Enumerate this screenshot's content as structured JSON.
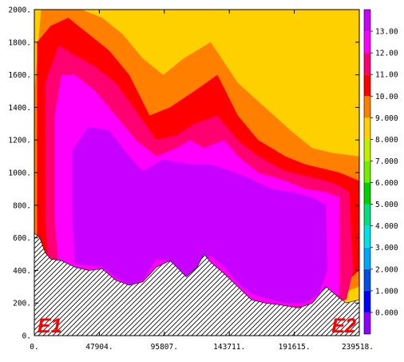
{
  "chart_data": {
    "type": "heatmap",
    "title": "",
    "xlabel": "",
    "ylabel": "",
    "x_ticks": [
      "0.",
      "47904.",
      "95807.",
      "143711.",
      "191615.",
      "239518."
    ],
    "x_tick_values": [
      0,
      47904,
      95807,
      143711,
      191615,
      239518
    ],
    "y_ticks": [
      "0.",
      "200.",
      "400.",
      "600.",
      "800.",
      "1000.",
      "1200.",
      "1400.",
      "1600.",
      "1800.",
      "2000."
    ],
    "y_tick_values": [
      0,
      200,
      400,
      600,
      800,
      1000,
      1200,
      1400,
      1600,
      1800,
      2000
    ],
    "xlim": [
      0,
      239518
    ],
    "ylim": [
      0,
      2000
    ],
    "colorbar": {
      "labels": [
        "0.000",
        "1.000",
        "2.000",
        "3.000",
        "4.000",
        "5.000",
        "6.000",
        "7.000",
        "8.000",
        "9.000",
        "10.00",
        "11.00",
        "12.00",
        "13.00"
      ],
      "levels": [
        0,
        1,
        2,
        3,
        4,
        5,
        6,
        7,
        8,
        9,
        10,
        11,
        12,
        13
      ],
      "colors": [
        "#8f00ff",
        "#0000ff",
        "#0050e8",
        "#00a5ff",
        "#00e0e8",
        "#00e080",
        "#00d000",
        "#70f000",
        "#c0f000",
        "#ffd000",
        "#ff8000",
        "#ff0000",
        "#ff0070",
        "#ff00ff",
        "#c800ff"
      ]
    },
    "terrain_profile": [
      [
        0,
        630
      ],
      [
        4000,
        600
      ],
      [
        8000,
        510
      ],
      [
        12000,
        470
      ],
      [
        20000,
        460
      ],
      [
        30000,
        420
      ],
      [
        40000,
        400
      ],
      [
        50000,
        410
      ],
      [
        60000,
        340
      ],
      [
        70000,
        310
      ],
      [
        80000,
        330
      ],
      [
        90000,
        420
      ],
      [
        100000,
        460
      ],
      [
        105000,
        420
      ],
      [
        112000,
        360
      ],
      [
        120000,
        420
      ],
      [
        125000,
        500
      ],
      [
        130000,
        450
      ],
      [
        140000,
        380
      ],
      [
        150000,
        300
      ],
      [
        160000,
        220
      ],
      [
        170000,
        200
      ],
      [
        180000,
        190
      ],
      [
        195000,
        170
      ],
      [
        205000,
        200
      ],
      [
        215000,
        300
      ],
      [
        225000,
        230
      ],
      [
        230000,
        200
      ],
      [
        239518,
        220
      ]
    ],
    "isolines": [
      {
        "level": 13,
        "points": [
          [
            28000,
            1140
          ],
          [
            40000,
            1280
          ],
          [
            55000,
            1260
          ],
          [
            70000,
            1100
          ],
          [
            80000,
            1010
          ],
          [
            95000,
            1080
          ],
          [
            115000,
            1050
          ],
          [
            130000,
            1050
          ],
          [
            145000,
            1010
          ],
          [
            160000,
            960
          ],
          [
            175000,
            900
          ],
          [
            190000,
            880
          ],
          [
            205000,
            850
          ],
          [
            215000,
            800
          ],
          [
            216000,
            400
          ],
          [
            210000,
            260
          ],
          [
            200000,
            200
          ],
          [
            185000,
            200
          ],
          [
            170000,
            230
          ],
          [
            160000,
            260
          ],
          [
            150000,
            320
          ],
          [
            140000,
            420
          ],
          [
            130000,
            490
          ],
          [
            120000,
            420
          ],
          [
            110000,
            300
          ],
          [
            100000,
            460
          ],
          [
            90000,
            470
          ],
          [
            80000,
            340
          ],
          [
            70000,
            310
          ],
          [
            60000,
            360
          ],
          [
            50000,
            420
          ],
          [
            40000,
            430
          ],
          [
            30000,
            440
          ],
          [
            28000,
            700
          ]
        ]
      },
      {
        "level": 12,
        "points": [
          [
            15000,
            1350
          ],
          [
            20000,
            1600
          ],
          [
            30000,
            1600
          ],
          [
            45000,
            1500
          ],
          [
            60000,
            1350
          ],
          [
            75000,
            1200
          ],
          [
            90000,
            1100
          ],
          [
            105000,
            1150
          ],
          [
            115000,
            1200
          ],
          [
            125000,
            1150
          ],
          [
            140000,
            1200
          ],
          [
            150000,
            1100
          ],
          [
            165000,
            1000
          ],
          [
            185000,
            950
          ],
          [
            200000,
            900
          ],
          [
            215000,
            880
          ],
          [
            225000,
            850
          ],
          [
            225000,
            250
          ],
          [
            200000,
            180
          ],
          [
            180000,
            180
          ],
          [
            160000,
            210
          ],
          [
            140000,
            300
          ],
          [
            120000,
            380
          ],
          [
            100000,
            420
          ],
          [
            85000,
            360
          ],
          [
            70000,
            290
          ],
          [
            50000,
            390
          ],
          [
            30000,
            420
          ],
          [
            18000,
            430
          ],
          [
            15000,
            700
          ]
        ]
      },
      {
        "level": 11,
        "points": [
          [
            8000,
            1550
          ],
          [
            18000,
            1780
          ],
          [
            30000,
            1720
          ],
          [
            45000,
            1650
          ],
          [
            60000,
            1550
          ],
          [
            75000,
            1380
          ],
          [
            90000,
            1200
          ],
          [
            105000,
            1230
          ],
          [
            118000,
            1300
          ],
          [
            135000,
            1350
          ],
          [
            150000,
            1200
          ],
          [
            165000,
            1100
          ],
          [
            185000,
            1010
          ],
          [
            200000,
            980
          ],
          [
            215000,
            950
          ],
          [
            225000,
            920
          ],
          [
            232000,
            880
          ],
          [
            235000,
            400
          ],
          [
            230000,
            220
          ],
          [
            200000,
            160
          ],
          [
            170000,
            160
          ],
          [
            140000,
            240
          ],
          [
            115000,
            350
          ],
          [
            90000,
            380
          ],
          [
            60000,
            300
          ],
          [
            30000,
            400
          ],
          [
            10000,
            470
          ],
          [
            8000,
            700
          ]
        ]
      },
      {
        "level": 10,
        "points": [
          [
            2000,
            1800
          ],
          [
            12000,
            1900
          ],
          [
            25000,
            1950
          ],
          [
            40000,
            1850
          ],
          [
            55000,
            1750
          ],
          [
            70000,
            1600
          ],
          [
            85000,
            1350
          ],
          [
            100000,
            1400
          ],
          [
            118000,
            1500
          ],
          [
            135000,
            1600
          ],
          [
            150000,
            1350
          ],
          [
            165000,
            1200
          ],
          [
            185000,
            1100
          ],
          [
            200000,
            1050
          ],
          [
            215000,
            1020
          ],
          [
            225000,
            1000
          ],
          [
            239518,
            950
          ],
          [
            239518,
            400
          ],
          [
            215000,
            220
          ],
          [
            180000,
            150
          ],
          [
            140000,
            200
          ],
          [
            100000,
            320
          ],
          [
            60000,
            300
          ],
          [
            25000,
            400
          ],
          [
            2000,
            500
          ]
        ]
      },
      {
        "level": 9,
        "points": [
          [
            0,
            1500
          ],
          [
            5000,
            2000
          ],
          [
            35000,
            2000
          ],
          [
            50000,
            1950
          ],
          [
            65000,
            1850
          ],
          [
            80000,
            1700
          ],
          [
            95000,
            1600
          ],
          [
            110000,
            1700
          ],
          [
            130000,
            1800
          ],
          [
            150000,
            1550
          ],
          [
            170000,
            1400
          ],
          [
            190000,
            1250
          ],
          [
            205000,
            1150
          ],
          [
            220000,
            1120
          ],
          [
            239518,
            1100
          ],
          [
            239518,
            300
          ],
          [
            200000,
            180
          ],
          [
            150000,
            170
          ],
          [
            110000,
            300
          ],
          [
            60000,
            300
          ],
          [
            20000,
            420
          ],
          [
            0,
            560
          ]
        ]
      },
      {
        "level": 8,
        "points": [
          [
            0,
            1300
          ],
          [
            0,
            2000
          ],
          [
            239518,
            2000
          ],
          [
            239518,
            200
          ],
          [
            200000,
            150
          ],
          [
            160000,
            150
          ],
          [
            110000,
            280
          ],
          [
            60000,
            280
          ],
          [
            20000,
            380
          ],
          [
            0,
            520
          ]
        ]
      }
    ]
  },
  "labels": {
    "left": "E1",
    "right": "E2"
  },
  "style": {
    "background_fill": "#00d8d8",
    "hatch_color": "#000000"
  }
}
